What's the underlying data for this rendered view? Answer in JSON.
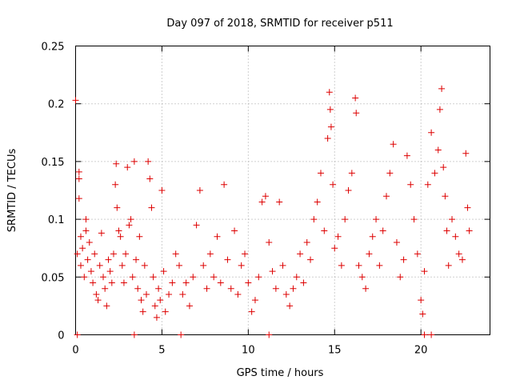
{
  "chart_data": {
    "type": "scatter",
    "title": "Day 097 of 2018, SRMTID for receiver p511",
    "xlabel": "GPS time / hours",
    "ylabel": "SRMTID / TECUs",
    "xlim": [
      0,
      24
    ],
    "ylim": [
      0,
      0.25
    ],
    "grid": true,
    "legend": "none",
    "x_ticks": [
      0,
      5,
      10,
      15,
      20
    ],
    "y_ticks": [
      0,
      0.05,
      0.1,
      0.15,
      0.2,
      0.25
    ],
    "x_tick_labels": [
      "0",
      "5",
      "10",
      "15",
      "20"
    ],
    "y_tick_labels": [
      "0",
      "0.05",
      "0.1",
      "0.15",
      "0.2",
      "0.25"
    ],
    "marker": "plus",
    "color": "#dd0000",
    "series": [
      {
        "name": "SRMTID",
        "points": [
          [
            0.0,
            0.203
          ],
          [
            0.1,
            0.07
          ],
          [
            0.2,
            0.141
          ],
          [
            0.2,
            0.135
          ],
          [
            0.2,
            0.118
          ],
          [
            0.3,
            0.085
          ],
          [
            0.3,
            0.06
          ],
          [
            0.4,
            0.075
          ],
          [
            0.5,
            0.05
          ],
          [
            0.6,
            0.1
          ],
          [
            0.6,
            0.09
          ],
          [
            0.7,
            0.065
          ],
          [
            0.8,
            0.08
          ],
          [
            0.9,
            0.055
          ],
          [
            1.0,
            0.045
          ],
          [
            1.1,
            0.07
          ],
          [
            1.2,
            0.035
          ],
          [
            1.3,
            0.03
          ],
          [
            1.4,
            0.06
          ],
          [
            1.5,
            0.088
          ],
          [
            1.6,
            0.05
          ],
          [
            1.7,
            0.04
          ],
          [
            1.8,
            0.025
          ],
          [
            1.9,
            0.065
          ],
          [
            2.0,
            0.055
          ],
          [
            2.1,
            0.045
          ],
          [
            2.2,
            0.07
          ],
          [
            2.3,
            0.13
          ],
          [
            2.35,
            0.148
          ],
          [
            2.4,
            0.11
          ],
          [
            2.5,
            0.09
          ],
          [
            2.6,
            0.085
          ],
          [
            2.7,
            0.06
          ],
          [
            2.8,
            0.045
          ],
          [
            2.9,
            0.07
          ],
          [
            3.0,
            0.145
          ],
          [
            3.1,
            0.095
          ],
          [
            3.2,
            0.1
          ],
          [
            3.3,
            0.05
          ],
          [
            3.4,
            0.15
          ],
          [
            3.5,
            0.065
          ],
          [
            3.6,
            0.04
          ],
          [
            3.7,
            0.085
          ],
          [
            3.8,
            0.03
          ],
          [
            3.9,
            0.02
          ],
          [
            4.0,
            0.06
          ],
          [
            4.1,
            0.035
          ],
          [
            4.2,
            0.15
          ],
          [
            4.3,
            0.135
          ],
          [
            4.4,
            0.11
          ],
          [
            4.5,
            0.05
          ],
          [
            4.6,
            0.025
          ],
          [
            4.7,
            0.015
          ],
          [
            4.8,
            0.04
          ],
          [
            4.9,
            0.03
          ],
          [
            5.0,
            0.125
          ],
          [
            5.1,
            0.055
          ],
          [
            5.2,
            0.02
          ],
          [
            5.4,
            0.035
          ],
          [
            5.6,
            0.045
          ],
          [
            5.8,
            0.07
          ],
          [
            6.0,
            0.06
          ],
          [
            6.2,
            0.035
          ],
          [
            6.4,
            0.045
          ],
          [
            6.6,
            0.025
          ],
          [
            6.8,
            0.05
          ],
          [
            7.0,
            0.095
          ],
          [
            7.2,
            0.125
          ],
          [
            7.4,
            0.06
          ],
          [
            7.6,
            0.04
          ],
          [
            7.8,
            0.07
          ],
          [
            8.0,
            0.05
          ],
          [
            8.2,
            0.085
          ],
          [
            8.4,
            0.045
          ],
          [
            8.6,
            0.13
          ],
          [
            8.8,
            0.065
          ],
          [
            9.0,
            0.04
          ],
          [
            9.2,
            0.09
          ],
          [
            9.4,
            0.035
          ],
          [
            9.6,
            0.06
          ],
          [
            9.8,
            0.07
          ],
          [
            10.0,
            0.045
          ],
          [
            10.2,
            0.02
          ],
          [
            10.4,
            0.03
          ],
          [
            10.6,
            0.05
          ],
          [
            10.8,
            0.115
          ],
          [
            11.0,
            0.12
          ],
          [
            11.2,
            0.08
          ],
          [
            11.4,
            0.055
          ],
          [
            11.6,
            0.04
          ],
          [
            11.8,
            0.115
          ],
          [
            12.0,
            0.06
          ],
          [
            12.2,
            0.035
          ],
          [
            12.4,
            0.025
          ],
          [
            12.6,
            0.04
          ],
          [
            12.8,
            0.05
          ],
          [
            13.0,
            0.07
          ],
          [
            13.2,
            0.045
          ],
          [
            13.4,
            0.08
          ],
          [
            13.6,
            0.065
          ],
          [
            13.8,
            0.1
          ],
          [
            14.0,
            0.115
          ],
          [
            14.2,
            0.14
          ],
          [
            14.4,
            0.09
          ],
          [
            14.6,
            0.17
          ],
          [
            14.7,
            0.21
          ],
          [
            14.75,
            0.195
          ],
          [
            14.8,
            0.18
          ],
          [
            14.9,
            0.13
          ],
          [
            15.0,
            0.075
          ],
          [
            15.2,
            0.085
          ],
          [
            15.4,
            0.06
          ],
          [
            15.6,
            0.1
          ],
          [
            15.8,
            0.125
          ],
          [
            16.0,
            0.14
          ],
          [
            16.2,
            0.205
          ],
          [
            16.25,
            0.192
          ],
          [
            16.4,
            0.06
          ],
          [
            16.6,
            0.05
          ],
          [
            16.8,
            0.04
          ],
          [
            17.0,
            0.07
          ],
          [
            17.2,
            0.085
          ],
          [
            17.4,
            0.1
          ],
          [
            17.6,
            0.06
          ],
          [
            17.8,
            0.09
          ],
          [
            18.0,
            0.12
          ],
          [
            18.2,
            0.14
          ],
          [
            18.4,
            0.165
          ],
          [
            18.6,
            0.08
          ],
          [
            18.8,
            0.05
          ],
          [
            19.0,
            0.065
          ],
          [
            19.2,
            0.155
          ],
          [
            19.4,
            0.13
          ],
          [
            19.6,
            0.1
          ],
          [
            19.8,
            0.07
          ],
          [
            20.0,
            0.03
          ],
          [
            20.1,
            0.018
          ],
          [
            20.2,
            0.055
          ],
          [
            20.4,
            0.13
          ],
          [
            20.6,
            0.175
          ],
          [
            20.8,
            0.14
          ],
          [
            21.0,
            0.16
          ],
          [
            21.1,
            0.195
          ],
          [
            21.2,
            0.213
          ],
          [
            21.3,
            0.145
          ],
          [
            21.4,
            0.12
          ],
          [
            21.5,
            0.09
          ],
          [
            21.6,
            0.06
          ],
          [
            21.8,
            0.1
          ],
          [
            22.0,
            0.085
          ],
          [
            22.2,
            0.07
          ],
          [
            22.4,
            0.065
          ],
          [
            22.6,
            0.157
          ],
          [
            22.7,
            0.11
          ],
          [
            22.8,
            0.09
          ],
          [
            0.1,
            0.0
          ],
          [
            3.4,
            0.0
          ],
          [
            6.1,
            0.0
          ],
          [
            11.2,
            0.0
          ],
          [
            20.2,
            0.0
          ],
          [
            20.6,
            0.0
          ]
        ]
      }
    ]
  }
}
